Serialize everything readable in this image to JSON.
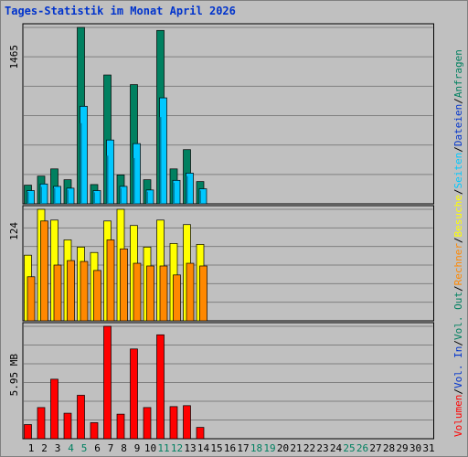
{
  "chart_data": [
    {
      "type": "bar",
      "title": "Tages-Statistik im Monat April 2026",
      "panel": "hits",
      "y_tick_label": "1465",
      "ymax": 1465,
      "grid": true,
      "categories": [
        "1",
        "2",
        "3",
        "4",
        "5",
        "6",
        "7",
        "8",
        "9",
        "10",
        "11",
        "12",
        "13",
        "14",
        "15",
        "16",
        "17",
        "18",
        "19",
        "20",
        "21",
        "22",
        "23",
        "24",
        "25",
        "26",
        "27",
        "28",
        "29",
        "30",
        "31"
      ],
      "weekend_categories": [
        "4",
        "5",
        "11",
        "12",
        "18",
        "19",
        "25",
        "26"
      ],
      "series": [
        {
          "name": "Anfragen",
          "color": "#008060",
          "values": [
            155,
            230,
            290,
            200,
            1465,
            160,
            1070,
            240,
            990,
            200,
            1440,
            290,
            450,
            185,
            0,
            0,
            0,
            0,
            0,
            0,
            0,
            0,
            0,
            0,
            0,
            0,
            0,
            0,
            0,
            0,
            0
          ]
        },
        {
          "name": "Dateien",
          "color": "#00c8ff",
          "values": [
            110,
            165,
            145,
            130,
            810,
            110,
            530,
            145,
            500,
            115,
            880,
            195,
            255,
            125,
            0,
            0,
            0,
            0,
            0,
            0,
            0,
            0,
            0,
            0,
            0,
            0,
            0,
            0,
            0,
            0,
            0
          ]
        },
        {
          "name": "Seiten",
          "color": "#00c8ff",
          "values": [
            100,
            140,
            130,
            115,
            670,
            95,
            400,
            130,
            380,
            100,
            720,
            175,
            230,
            110,
            0,
            0,
            0,
            0,
            0,
            0,
            0,
            0,
            0,
            0,
            0,
            0,
            0,
            0,
            0,
            0,
            0
          ]
        }
      ]
    },
    {
      "type": "bar",
      "panel": "visits",
      "y_tick_label": "124",
      "ymax": 124,
      "grid": true,
      "series": [
        {
          "name": "Besuche",
          "color": "#ffff00",
          "values": [
            73,
            124,
            112,
            90,
            82,
            76,
            111,
            124,
            106,
            82,
            112,
            86,
            107,
            85,
            0,
            0,
            0,
            0,
            0,
            0,
            0,
            0,
            0,
            0,
            0,
            0,
            0,
            0,
            0,
            0,
            0
          ]
        },
        {
          "name": "Rechner",
          "color": "#ff8800",
          "values": [
            49,
            111,
            62,
            67,
            66,
            56,
            90,
            80,
            64,
            61,
            61,
            51,
            64,
            61,
            0,
            0,
            0,
            0,
            0,
            0,
            0,
            0,
            0,
            0,
            0,
            0,
            0,
            0,
            0,
            0,
            0
          ]
        }
      ]
    },
    {
      "type": "bar",
      "panel": "volume",
      "y_tick_label": "5.95 MB",
      "ymax": 5.95,
      "grid": true,
      "series": [
        {
          "name": "Volumen",
          "color": "#ff0000",
          "values": [
            0.75,
            1.65,
            3.15,
            1.35,
            2.3,
            0.85,
            5.95,
            1.3,
            4.75,
            1.65,
            5.5,
            1.7,
            1.75,
            0.6,
            0,
            0,
            0,
            0,
            0,
            0,
            0,
            0,
            0,
            0,
            0,
            0,
            0,
            0,
            0,
            0,
            0
          ]
        }
      ]
    }
  ],
  "right_legend": [
    {
      "text": "Volumen",
      "color": "#ff0000"
    },
    {
      "text": "/",
      "color": "#000000"
    },
    {
      "text": "Vol. In",
      "color": "#0033cc"
    },
    {
      "text": "/",
      "color": "#000000"
    },
    {
      "text": "Vol. Out",
      "color": "#008060"
    },
    {
      "text": "/",
      "color": "#000000"
    },
    {
      "text": "Rechner",
      "color": "#ff8800"
    },
    {
      "text": "/",
      "color": "#000000"
    },
    {
      "text": "Besuche",
      "color": "#ffff00"
    },
    {
      "text": "/",
      "color": "#000000"
    },
    {
      "text": "Seiten",
      "color": "#00c8ff"
    },
    {
      "text": "/",
      "color": "#000000"
    },
    {
      "text": "Dateien",
      "color": "#0033cc"
    },
    {
      "text": "/",
      "color": "#000000"
    },
    {
      "text": "Anfragen",
      "color": "#008060"
    }
  ],
  "colors": {
    "background": "#c0c0c0",
    "grid": "#808080",
    "weekday_label": "#000000",
    "weekend_label": "#008060",
    "title": "#0033cc"
  }
}
